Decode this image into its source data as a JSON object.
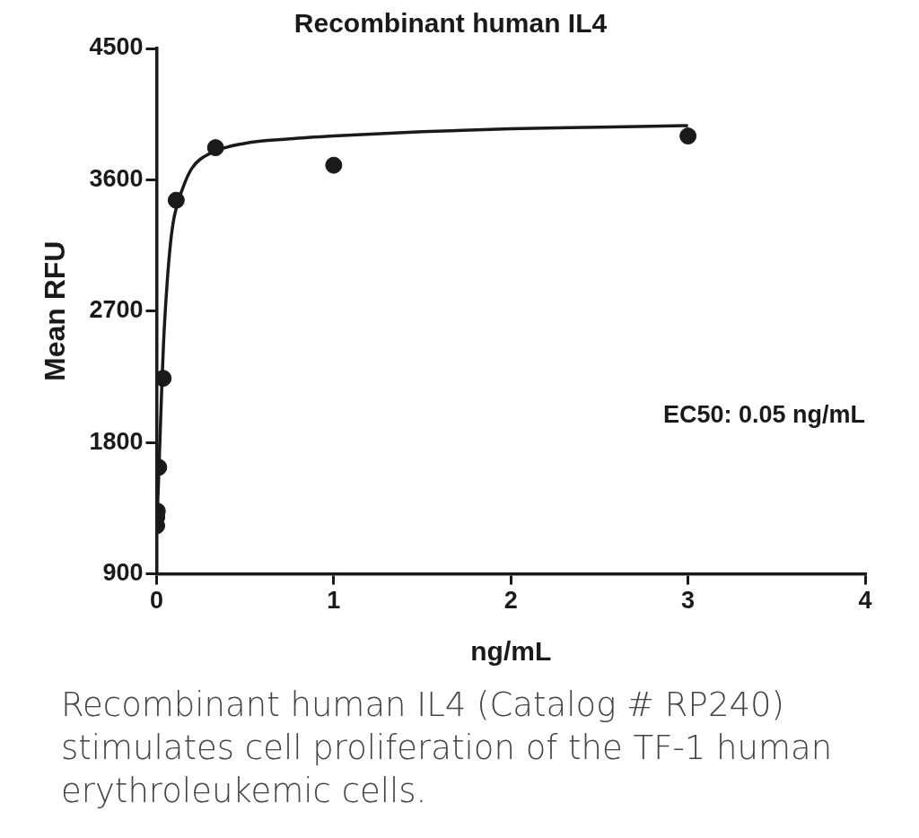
{
  "chart_data": {
    "type": "scatter",
    "title": "Recombinant human IL4",
    "xlabel": "ng/mL",
    "ylabel": "Mean RFU",
    "xlim": [
      0,
      4
    ],
    "xticks": [
      0,
      1,
      2,
      3,
      4
    ],
    "ylim": [
      900,
      4500
    ],
    "yticks": [
      900,
      1800,
      2700,
      3600,
      4500
    ],
    "grid": false,
    "legend": false,
    "series": [
      {
        "marker": "circle",
        "color": "#1a1a1a",
        "x": [
          3,
          1,
          0.333,
          0.111,
          0.037,
          0.012,
          0.004,
          0.001,
          0.0005
        ],
        "values": [
          3900,
          3700,
          3820,
          3460,
          2240,
          1630,
          1330,
          1290,
          1230
        ]
      },
      {
        "type": "line",
        "marker": "none",
        "line_style": "solid",
        "color": "#1a1a1a",
        "x": [
          0,
          0.005,
          0.01,
          0.02,
          0.03,
          0.04,
          0.06,
          0.08,
          0.1,
          0.15,
          0.2,
          0.3,
          0.5,
          0.75,
          1,
          1.5,
          2,
          2.5,
          3
        ],
        "values": [
          1200,
          1350,
          1500,
          1850,
          2200,
          2500,
          2900,
          3180,
          3350,
          3550,
          3680,
          3780,
          3850,
          3880,
          3900,
          3930,
          3950,
          3960,
          3971
        ]
      }
    ],
    "annotations": [
      "EC50: 0.05 ng/mL",
      "Recombinant human IL4 (Catalog # RP240) stimulates cell proliferation of the TF-1 human erythroleukemic cells."
    ]
  }
}
